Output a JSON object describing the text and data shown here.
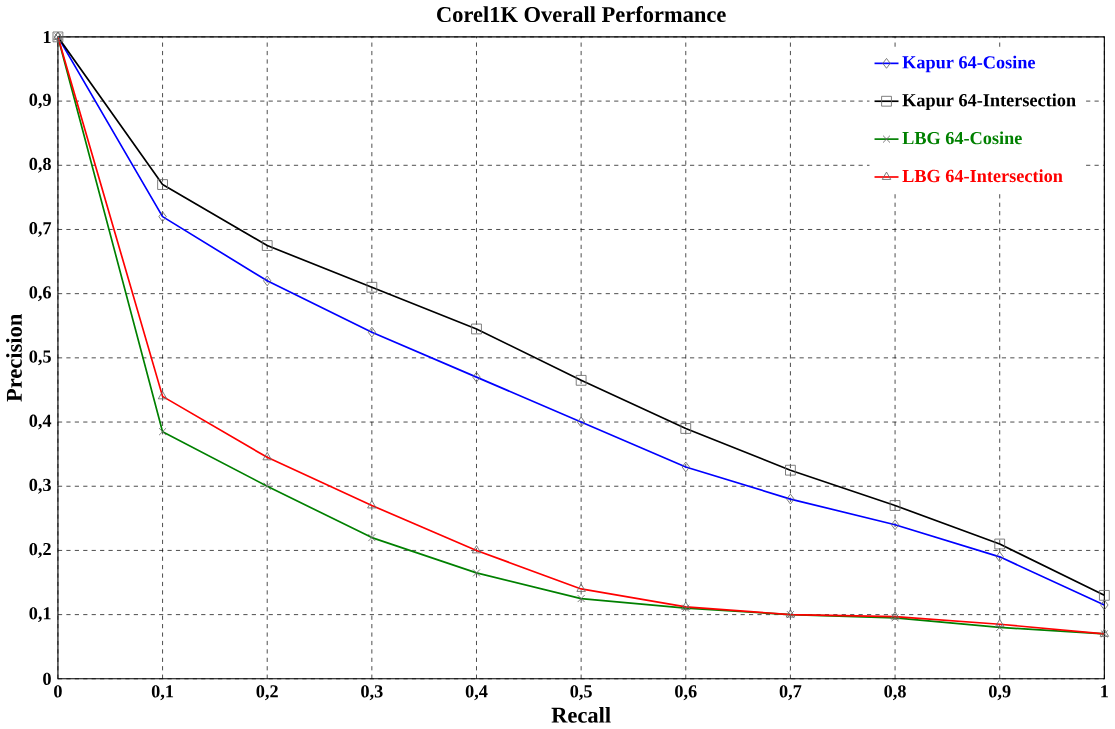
{
  "chart_data": {
    "type": "line",
    "title": "Corel1K Overall Performance",
    "xlabel": "Recall",
    "ylabel": "Precision",
    "x": [
      0,
      0.1,
      0.2,
      0.3,
      0.4,
      0.5,
      0.6,
      0.7,
      0.8,
      0.9,
      1
    ],
    "series": [
      {
        "name": "Kapur 64-Cosine",
        "color": "#0000ff",
        "marker": "diamond",
        "values": [
          1,
          0.72,
          0.62,
          0.54,
          0.47,
          0.4,
          0.33,
          0.28,
          0.24,
          0.19,
          0.115
        ]
      },
      {
        "name": "Kapur 64-Intersection",
        "color": "#000000",
        "marker": "square",
        "values": [
          1,
          0.77,
          0.675,
          0.61,
          0.545,
          0.465,
          0.39,
          0.325,
          0.27,
          0.21,
          0.13
        ]
      },
      {
        "name": "LBG 64-Cosine",
        "color": "#008000",
        "marker": "cross",
        "values": [
          1,
          0.385,
          0.3,
          0.22,
          0.165,
          0.125,
          0.11,
          0.1,
          0.095,
          0.08,
          0.07
        ]
      },
      {
        "name": "LBG 64-Intersection",
        "color": "#ff0000",
        "marker": "triangle",
        "values": [
          1,
          0.44,
          0.345,
          0.27,
          0.2,
          0.14,
          0.112,
          0.1,
          0.097,
          0.085,
          0.07
        ]
      }
    ],
    "xlim": [
      0,
      1
    ],
    "ylim": [
      0,
      1
    ],
    "xticks": [
      0,
      {
        "value": 0.1,
        "label": "0,1"
      },
      {
        "value": 0.2,
        "label": "0,2"
      },
      {
        "value": 0.3,
        "label": "0,3"
      },
      {
        "value": 0.4,
        "label": "0,4"
      },
      {
        "value": 0.5,
        "label": "0,5"
      },
      {
        "value": 0.6,
        "label": "0,6"
      },
      {
        "value": 0.7,
        "label": "0,7"
      },
      {
        "value": 0.8,
        "label": "0,8"
      },
      {
        "value": 0.9,
        "label": "0,9"
      },
      1
    ],
    "yticks": [
      0,
      {
        "value": 0.1,
        "label": "0,1"
      },
      {
        "value": 0.2,
        "label": "0,2"
      },
      {
        "value": 0.3,
        "label": "0,3"
      },
      {
        "value": 0.4,
        "label": "0,4"
      },
      {
        "value": 0.5,
        "label": "0,5"
      },
      {
        "value": 0.6,
        "label": "0,6"
      },
      {
        "value": 0.7,
        "label": "0,7"
      },
      {
        "value": 0.8,
        "label": "0,8"
      },
      {
        "value": 0.9,
        "label": "0,9"
      },
      1
    ],
    "grid": true,
    "legend": "top right",
    "line_style": "solid"
  }
}
